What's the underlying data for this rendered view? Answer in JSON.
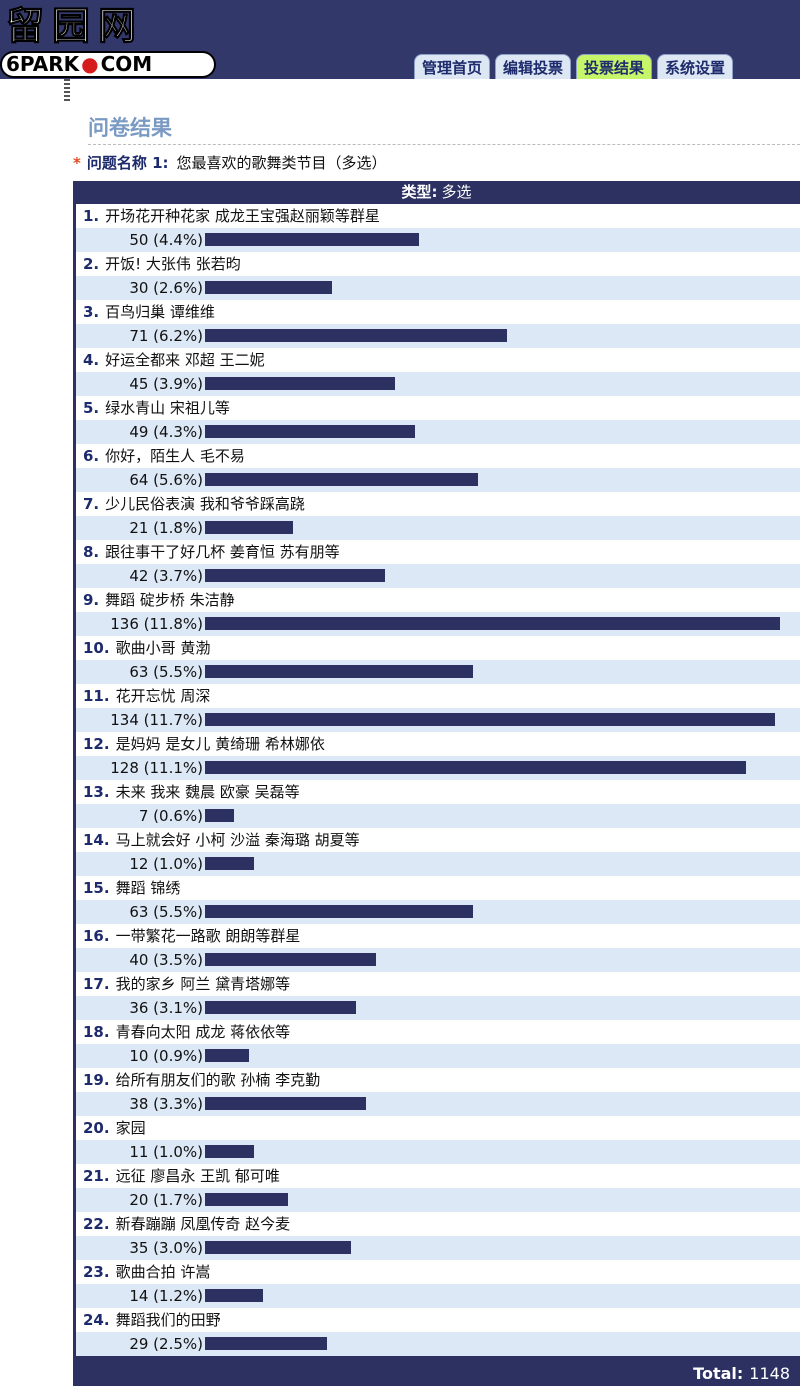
{
  "header": {
    "logo_cn": "留园网",
    "logo_en_left": "6PARK",
    "logo_en_right": "COM",
    "tabs": [
      "管理首页",
      "编辑投票",
      "投票结果",
      "系统设置"
    ],
    "active_tab": 2
  },
  "page": {
    "title": "问卷结果",
    "question_label": "问题名称 1:",
    "question_text": "您最喜欢的歌舞类节目（多选）",
    "type_label": "类型:",
    "type_value": "多选",
    "total_label": "Total:",
    "total_value": "1148"
  },
  "colors": {
    "header_bg": "#33386a",
    "active_tab": "#c6f56a",
    "row_alt": "#dde8f6",
    "bar": "#2c3161"
  },
  "options": [
    {
      "num": "1.",
      "text": "开场花开种花家 成龙王宝强赵丽颖等群星",
      "count": "50 (4.4%)",
      "pct": 4.4
    },
    {
      "num": "2.",
      "text": "开饭! 大张伟 张若昀",
      "count": "30 (2.6%)",
      "pct": 2.6
    },
    {
      "num": "3.",
      "text": "百鸟归巢 谭维维",
      "count": "71 (6.2%)",
      "pct": 6.2
    },
    {
      "num": "4.",
      "text": "好运全都来 邓超 王二妮",
      "count": "45 (3.9%)",
      "pct": 3.9
    },
    {
      "num": "5.",
      "text": "绿水青山 宋祖儿等",
      "count": "49 (4.3%)",
      "pct": 4.3
    },
    {
      "num": "6.",
      "text": "你好，陌生人 毛不易",
      "count": "64 (5.6%)",
      "pct": 5.6
    },
    {
      "num": "7.",
      "text": "少儿民俗表演 我和爷爷踩高跷",
      "count": "21 (1.8%)",
      "pct": 1.8
    },
    {
      "num": "8.",
      "text": "跟往事干了好几杯 姜育恒 苏有朋等",
      "count": "42 (3.7%)",
      "pct": 3.7
    },
    {
      "num": "9.",
      "text": "舞蹈 碇步桥 朱洁静",
      "count": "136 (11.8%)",
      "pct": 11.8
    },
    {
      "num": "10.",
      "text": "歌曲小哥 黄渤",
      "count": "63 (5.5%)",
      "pct": 5.5
    },
    {
      "num": "11.",
      "text": "花开忘忧 周深",
      "count": "134 (11.7%)",
      "pct": 11.7
    },
    {
      "num": "12.",
      "text": "是妈妈 是女儿 黄绮珊 希林娜依",
      "count": "128 (11.1%)",
      "pct": 11.1
    },
    {
      "num": "13.",
      "text": "未来 我来 魏晨 欧豪 吴磊等",
      "count": "7 (0.6%)",
      "pct": 0.6
    },
    {
      "num": "14.",
      "text": "马上就会好 小柯 沙溢 秦海璐 胡夏等",
      "count": "12 (1.0%)",
      "pct": 1.0
    },
    {
      "num": "15.",
      "text": "舞蹈 锦绣",
      "count": "63 (5.5%)",
      "pct": 5.5
    },
    {
      "num": "16.",
      "text": "一带繁花一路歌 朗朗等群星",
      "count": "40 (3.5%)",
      "pct": 3.5
    },
    {
      "num": "17.",
      "text": "我的家乡 阿兰 黛青塔娜等",
      "count": "36 (3.1%)",
      "pct": 3.1
    },
    {
      "num": "18.",
      "text": "青春向太阳 成龙 蒋依依等",
      "count": "10 (0.9%)",
      "pct": 0.9
    },
    {
      "num": "19.",
      "text": "给所有朋友们的歌 孙楠 李克勤",
      "count": "38 (3.3%)",
      "pct": 3.3
    },
    {
      "num": "20.",
      "text": "家园",
      "count": "11 (1.0%)",
      "pct": 1.0
    },
    {
      "num": "21.",
      "text": "远征 廖昌永 王凯 郁可唯",
      "count": "20 (1.7%)",
      "pct": 1.7
    },
    {
      "num": "22.",
      "text": "新春蹦蹦 凤凰传奇 赵今麦",
      "count": "35 (3.0%)",
      "pct": 3.0
    },
    {
      "num": "23.",
      "text": "歌曲合拍 许嵩",
      "count": "14 (1.2%)",
      "pct": 1.2
    },
    {
      "num": "24.",
      "text": "舞蹈我们的田野",
      "count": "29 (2.5%)",
      "pct": 2.5
    }
  ]
}
